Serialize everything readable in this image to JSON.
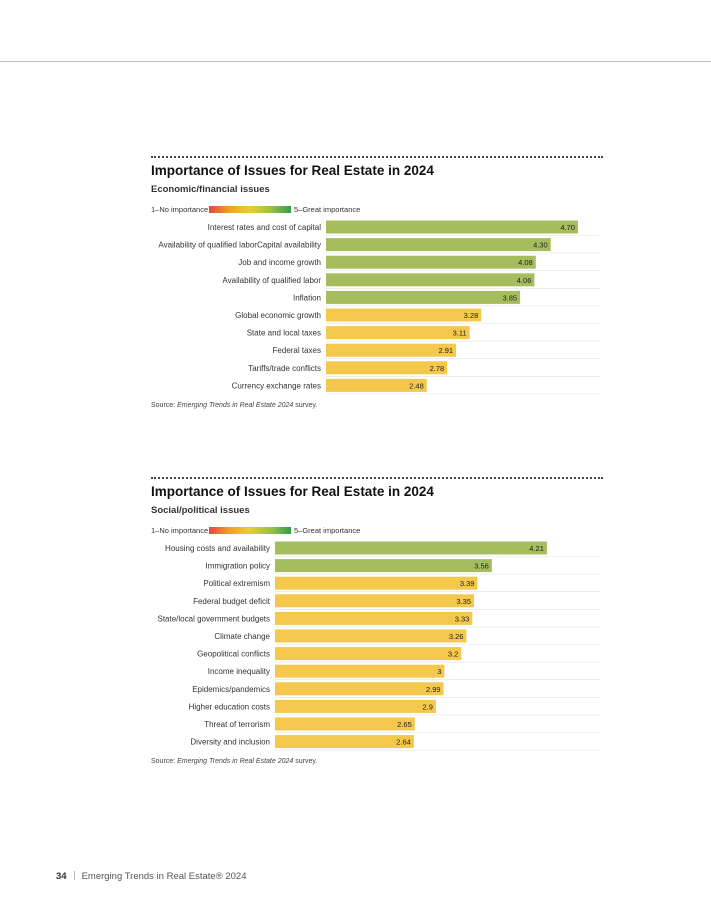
{
  "colors": {
    "green": "#a6bd5e",
    "yellow": "#f3c84d",
    "gridline": "#e2e2e2"
  },
  "charts": [
    {
      "title": "Importance of Issues for Real Estate in 2024",
      "subtitle": "Economic/financial issues",
      "legend_low": "1–No importance",
      "legend_high": "5–Great importance",
      "source_prefix": "Source: ",
      "source_italic": "Emerging Trends in Real Estate 2024",
      "source_suffix": " survey."
    },
    {
      "title": "Importance of Issues for Real Estate in 2024",
      "subtitle": "Social/political issues",
      "legend_low": "1–No importance",
      "legend_high": "5–Great importance",
      "source_prefix": "Source: ",
      "source_italic": "Emerging Trends in Real Estate 2024",
      "source_suffix": " survey."
    }
  ],
  "chart_data": [
    {
      "type": "bar",
      "orientation": "horizontal",
      "title": "Importance of Issues for Real Estate in 2024",
      "subtitle": "Economic/financial issues",
      "xlim": [
        1,
        5
      ],
      "grid": true,
      "categories": [
        "Interest rates and cost of capital",
        "Availability of qualified laborCapital availability",
        "Job and income growth",
        "Availability of qualified labor",
        "Inflation",
        "Global economic growth",
        "State and local taxes",
        "Federal taxes",
        "Tariffs/trade conflicts",
        "Currency exchange rates"
      ],
      "values": [
        4.7,
        4.3,
        4.08,
        4.06,
        3.85,
        3.28,
        3.11,
        2.91,
        2.78,
        2.48
      ],
      "labels": [
        "4.70",
        "4.30",
        "4.08",
        "4.06",
        "3.85",
        "3.28",
        "3.11",
        "2.91",
        "2.78",
        "2.48"
      ],
      "colors": [
        "green",
        "green",
        "green",
        "green",
        "green",
        "yellow",
        "yellow",
        "yellow",
        "yellow",
        "yellow"
      ]
    },
    {
      "type": "bar",
      "orientation": "horizontal",
      "title": "Importance of Issues for Real Estate in 2024",
      "subtitle": "Social/political issues",
      "xlim": [
        1,
        5
      ],
      "grid": true,
      "categories": [
        "Housing costs and availability",
        "Immigration policy",
        "Political extremism",
        "Federal budget deficit",
        "State/local government budgets",
        "Climate change",
        "Geopolitical conflicts",
        "Income inequality",
        "Epidemics/pandemics",
        "Higher education costs",
        "Threat of terrorism",
        "Diversity and inclusion"
      ],
      "values": [
        4.21,
        3.56,
        3.39,
        3.35,
        3.33,
        3.26,
        3.2,
        3,
        2.99,
        2.9,
        2.65,
        2.64
      ],
      "labels": [
        "4.21",
        "3.56",
        "3.39",
        "3.35",
        "3.33",
        "3.26",
        "3.2",
        "3",
        "2.99",
        "2.9",
        "2.65",
        "2.64"
      ],
      "colors": [
        "green",
        "green",
        "yellow",
        "yellow",
        "yellow",
        "yellow",
        "yellow",
        "yellow",
        "yellow",
        "yellow",
        "yellow",
        "yellow"
      ]
    }
  ],
  "footer": {
    "page_number": "34",
    "publication": "Emerging Trends in Real Estate® 2024"
  }
}
